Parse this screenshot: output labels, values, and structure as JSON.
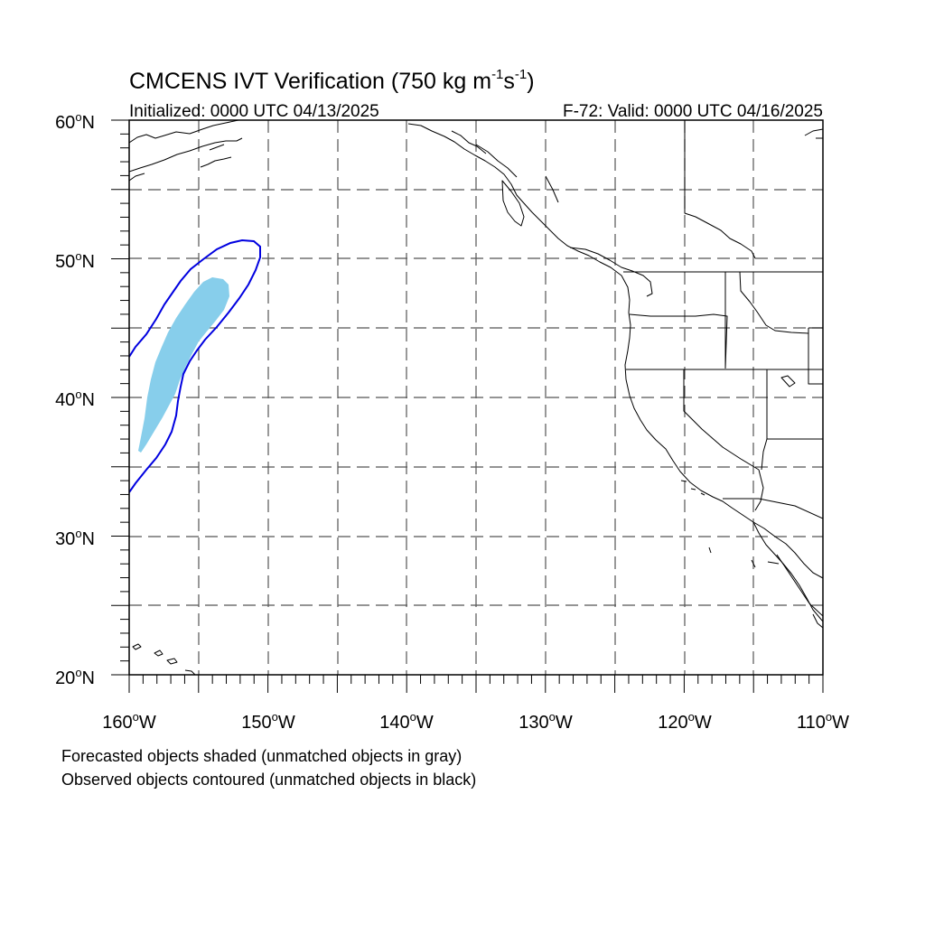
{
  "title": {
    "main": "CMCENS IVT Verification (750 kg m",
    "exp1": "-1",
    "mid": "s",
    "exp2": "-1",
    "close": ")"
  },
  "initialized": "Initialized: 0000 UTC 04/13/2025",
  "valid": "F-72: Valid: 0000 UTC 04/16/2025",
  "lat_labels": [
    {
      "id": "60",
      "deg": "60",
      "hemi": "N"
    },
    {
      "id": "50",
      "deg": "50",
      "hemi": "N"
    },
    {
      "id": "40",
      "deg": "40",
      "hemi": "N"
    },
    {
      "id": "30",
      "deg": "30",
      "hemi": "N"
    },
    {
      "id": "20",
      "deg": "20",
      "hemi": "N"
    }
  ],
  "lon_labels": [
    {
      "id": "160",
      "deg": "160",
      "hemi": "W"
    },
    {
      "id": "150",
      "deg": "150",
      "hemi": "W"
    },
    {
      "id": "140",
      "deg": "140",
      "hemi": "W"
    },
    {
      "id": "130",
      "deg": "130",
      "hemi": "W"
    },
    {
      "id": "120",
      "deg": "120",
      "hemi": "W"
    },
    {
      "id": "110",
      "deg": "110",
      "hemi": "W"
    }
  ],
  "legend": {
    "line1": "Forecasted objects shaded (unmatched objects in gray)",
    "line2": "Observed objects contoured (unmatched objects in black)"
  },
  "map": {
    "lon_range": [
      -160,
      -110
    ],
    "lat_range": [
      20,
      60
    ],
    "grid_style": "dashed",
    "forecast_fill_color": "#87ceeb",
    "observed_contour_color": "#0000e0",
    "coastline_color": "#000000"
  }
}
